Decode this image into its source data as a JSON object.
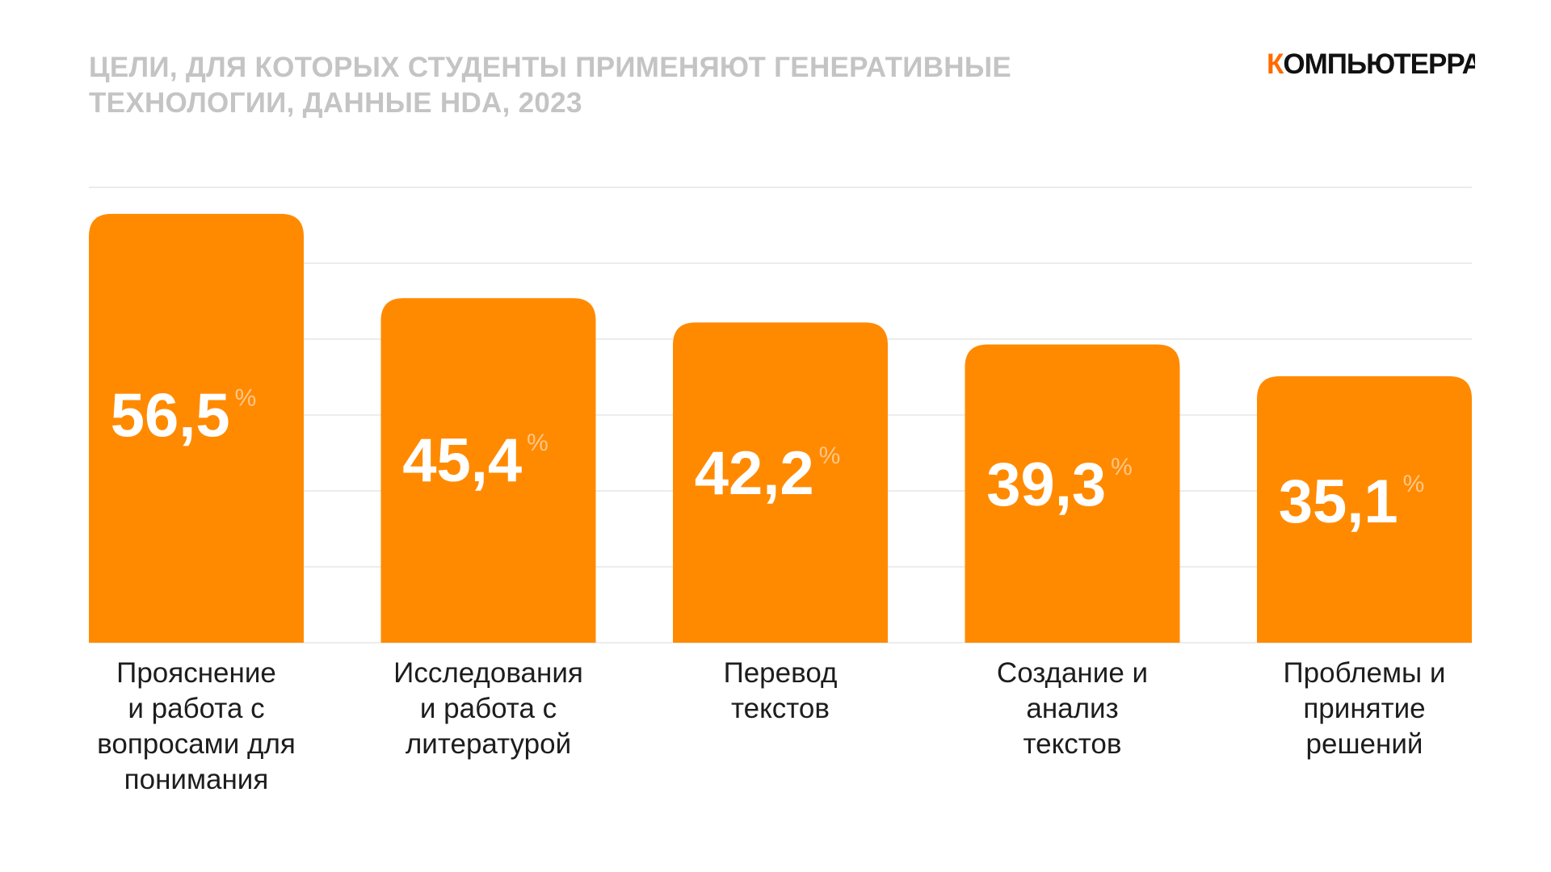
{
  "header": {
    "title": "ЦЕЛИ, ДЛЯ КОТОРЫХ СТУДЕНТЫ ПРИМЕНЯЮТ ГЕНЕРАТИВНЫЕ ТЕХНОЛОГИИ, ДАННЫЕ HDA, 2023",
    "logo_first_letter": "К",
    "logo_rest": "ОМПЬЮТЕРРА"
  },
  "colors": {
    "bar": "#ff8a00",
    "logo_accent": "#ff6a00",
    "logo_text": "#111111",
    "title": "#c4c4c4",
    "grid": "#e6e6e6",
    "value_text": "#ffffff",
    "percent_text": "#ffc78a"
  },
  "chart_data": {
    "type": "bar",
    "title": "ЦЕЛИ, ДЛЯ КОТОРЫХ СТУДЕНТЫ ПРИМЕНЯЮТ ГЕНЕРАТИВНЫЕ ТЕХНОЛОГИИ, ДАННЫЕ HDA, 2023",
    "categories": [
      "Прояснение\nи работа с\nвопросами для\nпонимания",
      "Исследования\nи работа с\nлитературой",
      "Перевод\nтекстов",
      "Создание и\nанализ\nтекстов",
      "Проблемы и\nпринятие\nрешений"
    ],
    "values": [
      56.5,
      45.4,
      42.2,
      39.3,
      35.1
    ],
    "value_labels": [
      "56,5",
      "45,4",
      "42,2",
      "39,3",
      "35,1"
    ],
    "unit": "%",
    "ylim": [
      0,
      60
    ],
    "grid": true,
    "legend": "none"
  }
}
